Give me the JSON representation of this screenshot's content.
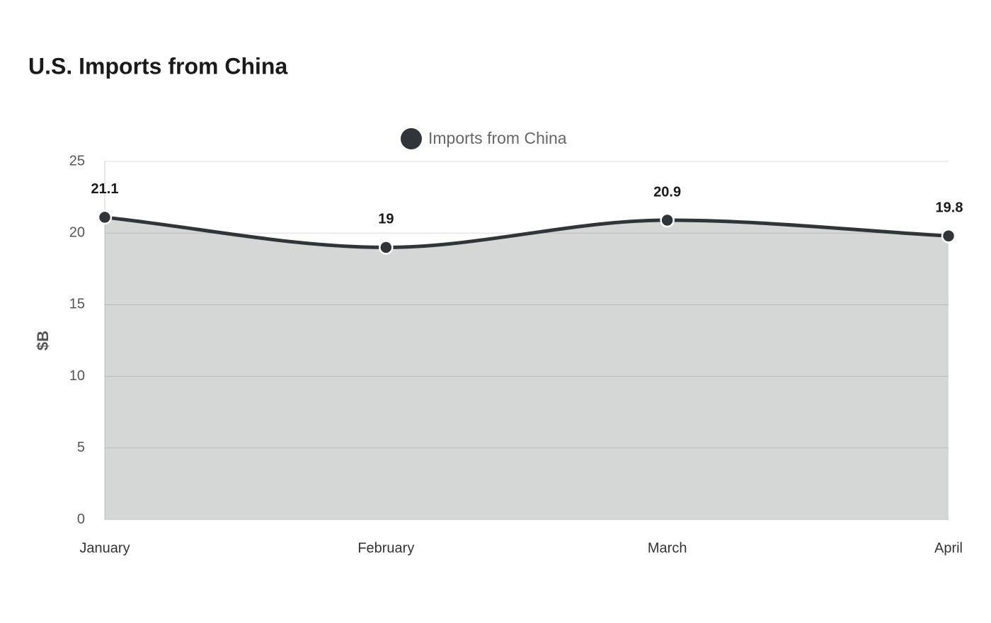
{
  "chart_data": {
    "type": "area",
    "title": "U.S. Imports from China",
    "y_label": "$B",
    "categories": [
      "January",
      "February",
      "March",
      "April"
    ],
    "series": [
      {
        "name": "Imports from China",
        "color": "#2f3538",
        "values": [
          21.1,
          19,
          20.9,
          19.8
        ]
      }
    ],
    "ylim": [
      0,
      25
    ],
    "yticks": [
      0,
      5,
      10,
      15,
      20,
      25
    ],
    "grid": true,
    "legend": "top",
    "data_labels": true
  }
}
